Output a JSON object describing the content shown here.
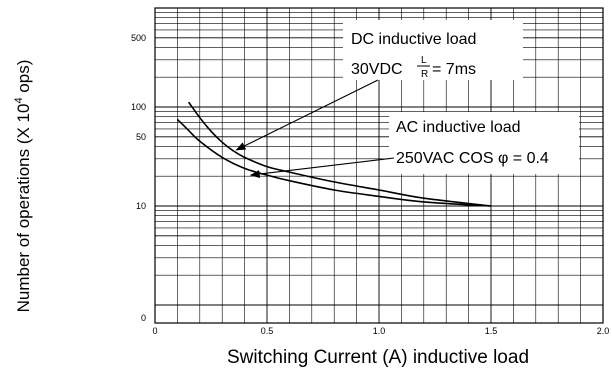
{
  "chart_data": {
    "type": "line",
    "title": "",
    "xlabel": "Switching Current (A) inductive load",
    "ylabel_parts": {
      "main": "Number of operations (X 10",
      "exp": "4",
      "tail": " ops)"
    },
    "xlim": [
      0,
      2.0
    ],
    "ylim": [
      0,
      1000
    ],
    "y_scale": "log",
    "grid": true,
    "x_ticks": [
      {
        "value": 0,
        "label": "0"
      },
      {
        "value": 0.5,
        "label": "0.5"
      },
      {
        "value": 1.0,
        "label": "1.0"
      },
      {
        "value": 1.5,
        "label": "1.5"
      },
      {
        "value": 2.0,
        "label": "2.0"
      }
    ],
    "y_ticks": [
      {
        "value": 500,
        "label": "500"
      },
      {
        "value": 100,
        "label": "100"
      },
      {
        "value": 50,
        "label": "50"
      },
      {
        "value": 10,
        "label": "10"
      },
      {
        "value": 0,
        "label": "0"
      }
    ],
    "series": [
      {
        "name": "DC inductive load",
        "x": [
          0.15,
          0.2,
          0.25,
          0.3,
          0.35,
          0.4,
          0.5,
          0.6,
          0.8,
          1.0,
          1.2,
          1.5
        ],
        "y": [
          112,
          78,
          57,
          44,
          36,
          31,
          25,
          22,
          17.5,
          14.5,
          12,
          10
        ]
      },
      {
        "name": "AC inductive load",
        "x": [
          0.1,
          0.15,
          0.2,
          0.3,
          0.4,
          0.5,
          0.6,
          0.8,
          1.0,
          1.2,
          1.5
        ],
        "y": [
          75,
          58,
          45,
          31,
          24,
          20.5,
          18,
          14.5,
          12.5,
          11,
          10
        ]
      }
    ],
    "annotations": [
      {
        "name": "dc-annotation",
        "line1": "DC inductive load",
        "line2_prefix": "30VDC",
        "frac_num": "L",
        "frac_den": "R",
        "line2_suffix": "= 7ms",
        "arrow_target": {
          "x": 0.35,
          "y": 36
        }
      },
      {
        "name": "ac-annotation",
        "line1": "AC inductive load",
        "line2": "250VAC COS φ = 0.4",
        "arrow_target": {
          "x": 0.45,
          "y": 22
        }
      }
    ]
  }
}
